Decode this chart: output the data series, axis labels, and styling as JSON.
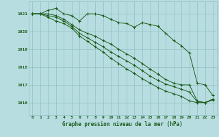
{
  "bg_color": "#b8dde0",
  "grid_color": "#8fbfc2",
  "line_color": "#1a5c1a",
  "xlabel": "Graphe pression niveau de la mer (hPa)",
  "xlabel_color": "#1a5c1a",
  "ylim": [
    1015.3,
    1021.7
  ],
  "xlim_min": -0.5,
  "xlim_max": 23.5,
  "yticks": [
    1016,
    1017,
    1018,
    1019,
    1020,
    1021
  ],
  "xticks": [
    0,
    1,
    2,
    3,
    4,
    5,
    6,
    7,
    8,
    9,
    10,
    11,
    12,
    13,
    14,
    15,
    16,
    17,
    18,
    19,
    20,
    21,
    22,
    23
  ],
  "series": [
    [
      1021.0,
      1021.0,
      1021.2,
      1021.3,
      1021.0,
      1020.9,
      1020.6,
      1021.0,
      1021.0,
      1020.9,
      1020.7,
      1020.5,
      1020.45,
      1020.25,
      1020.5,
      1020.4,
      1020.3,
      1019.9,
      1019.5,
      1019.2,
      1018.8,
      1017.1,
      1017.0,
      1016.4
    ],
    [
      1021.0,
      1021.0,
      1021.0,
      1020.9,
      1020.7,
      1020.4,
      1020.1,
      1019.9,
      1019.75,
      1019.5,
      1019.3,
      1019.0,
      1018.75,
      1018.5,
      1018.2,
      1017.9,
      1017.6,
      1017.3,
      1017.1,
      1017.0,
      1017.0,
      1016.1,
      1016.0,
      1016.2
    ],
    [
      1021.0,
      1021.0,
      1020.9,
      1020.8,
      1020.6,
      1020.3,
      1019.9,
      1019.65,
      1019.4,
      1019.15,
      1018.85,
      1018.6,
      1018.35,
      1018.1,
      1017.8,
      1017.5,
      1017.25,
      1017.05,
      1016.9,
      1016.75,
      1016.6,
      1016.05,
      1016.0,
      1016.2
    ],
    [
      1021.0,
      1021.0,
      1020.8,
      1020.6,
      1020.45,
      1020.2,
      1019.75,
      1019.45,
      1019.15,
      1018.85,
      1018.5,
      1018.2,
      1017.9,
      1017.65,
      1017.35,
      1017.1,
      1016.85,
      1016.65,
      1016.5,
      1016.35,
      1016.1,
      1016.0,
      1016.0,
      1016.15
    ]
  ]
}
